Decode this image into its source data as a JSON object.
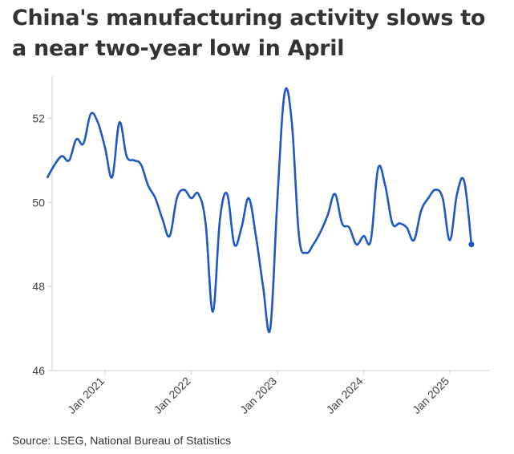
{
  "title": "China's manufacturing activity slows to a near two-year low in April",
  "source": "Source: LSEG, National Bureau of Statistics",
  "colors": {
    "line": "#1f57c3",
    "axis": "#cccccc",
    "text": "#444444"
  },
  "chart_data": {
    "type": "line",
    "title": "China's manufacturing activity slows to a near two-year low in April",
    "xlabel": "",
    "ylabel": "",
    "ylim": [
      46,
      53
    ],
    "yticks": [
      46,
      48,
      50,
      52
    ],
    "xtick_labels": [
      "Jan 2021",
      "Jan 2022",
      "Jan 2023",
      "Jan 2024",
      "Jan 2025"
    ],
    "grid": false,
    "series": [
      {
        "name": "",
        "x": [
          "2020-05",
          "2020-06",
          "2020-07",
          "2020-08",
          "2020-09",
          "2020-10",
          "2020-11",
          "2020-12",
          "2021-01",
          "2021-02",
          "2021-03",
          "2021-04",
          "2021-05",
          "2021-06",
          "2021-07",
          "2021-08",
          "2021-09",
          "2021-10",
          "2021-11",
          "2021-12",
          "2022-01",
          "2022-02",
          "2022-03",
          "2022-04",
          "2022-05",
          "2022-06",
          "2022-07",
          "2022-08",
          "2022-09",
          "2022-10",
          "2022-11",
          "2022-12",
          "2023-01",
          "2023-02",
          "2023-03",
          "2023-04",
          "2023-05",
          "2023-06",
          "2023-07",
          "2023-08",
          "2023-09",
          "2023-10",
          "2023-11",
          "2023-12",
          "2024-01",
          "2024-02",
          "2024-03",
          "2024-04",
          "2024-05",
          "2024-06",
          "2024-07",
          "2024-08",
          "2024-09",
          "2024-10",
          "2024-11",
          "2024-12",
          "2025-01",
          "2025-02",
          "2025-03",
          "2025-04"
        ],
        "values": [
          50.6,
          50.9,
          51.1,
          51.0,
          51.5,
          51.4,
          52.1,
          51.9,
          51.3,
          50.6,
          51.9,
          51.1,
          51.0,
          50.9,
          50.4,
          50.1,
          49.6,
          49.2,
          50.1,
          50.3,
          50.1,
          50.2,
          49.5,
          47.4,
          49.6,
          50.2,
          49.0,
          49.4,
          50.1,
          49.2,
          48.0,
          47.0,
          50.1,
          52.6,
          51.9,
          49.2,
          48.8,
          49.0,
          49.3,
          49.7,
          50.2,
          49.5,
          49.4,
          49.0,
          49.2,
          49.1,
          50.8,
          50.4,
          49.5,
          49.5,
          49.4,
          49.1,
          49.8,
          50.1,
          50.3,
          50.1,
          49.1,
          50.2,
          50.5,
          49.0
        ]
      }
    ]
  }
}
